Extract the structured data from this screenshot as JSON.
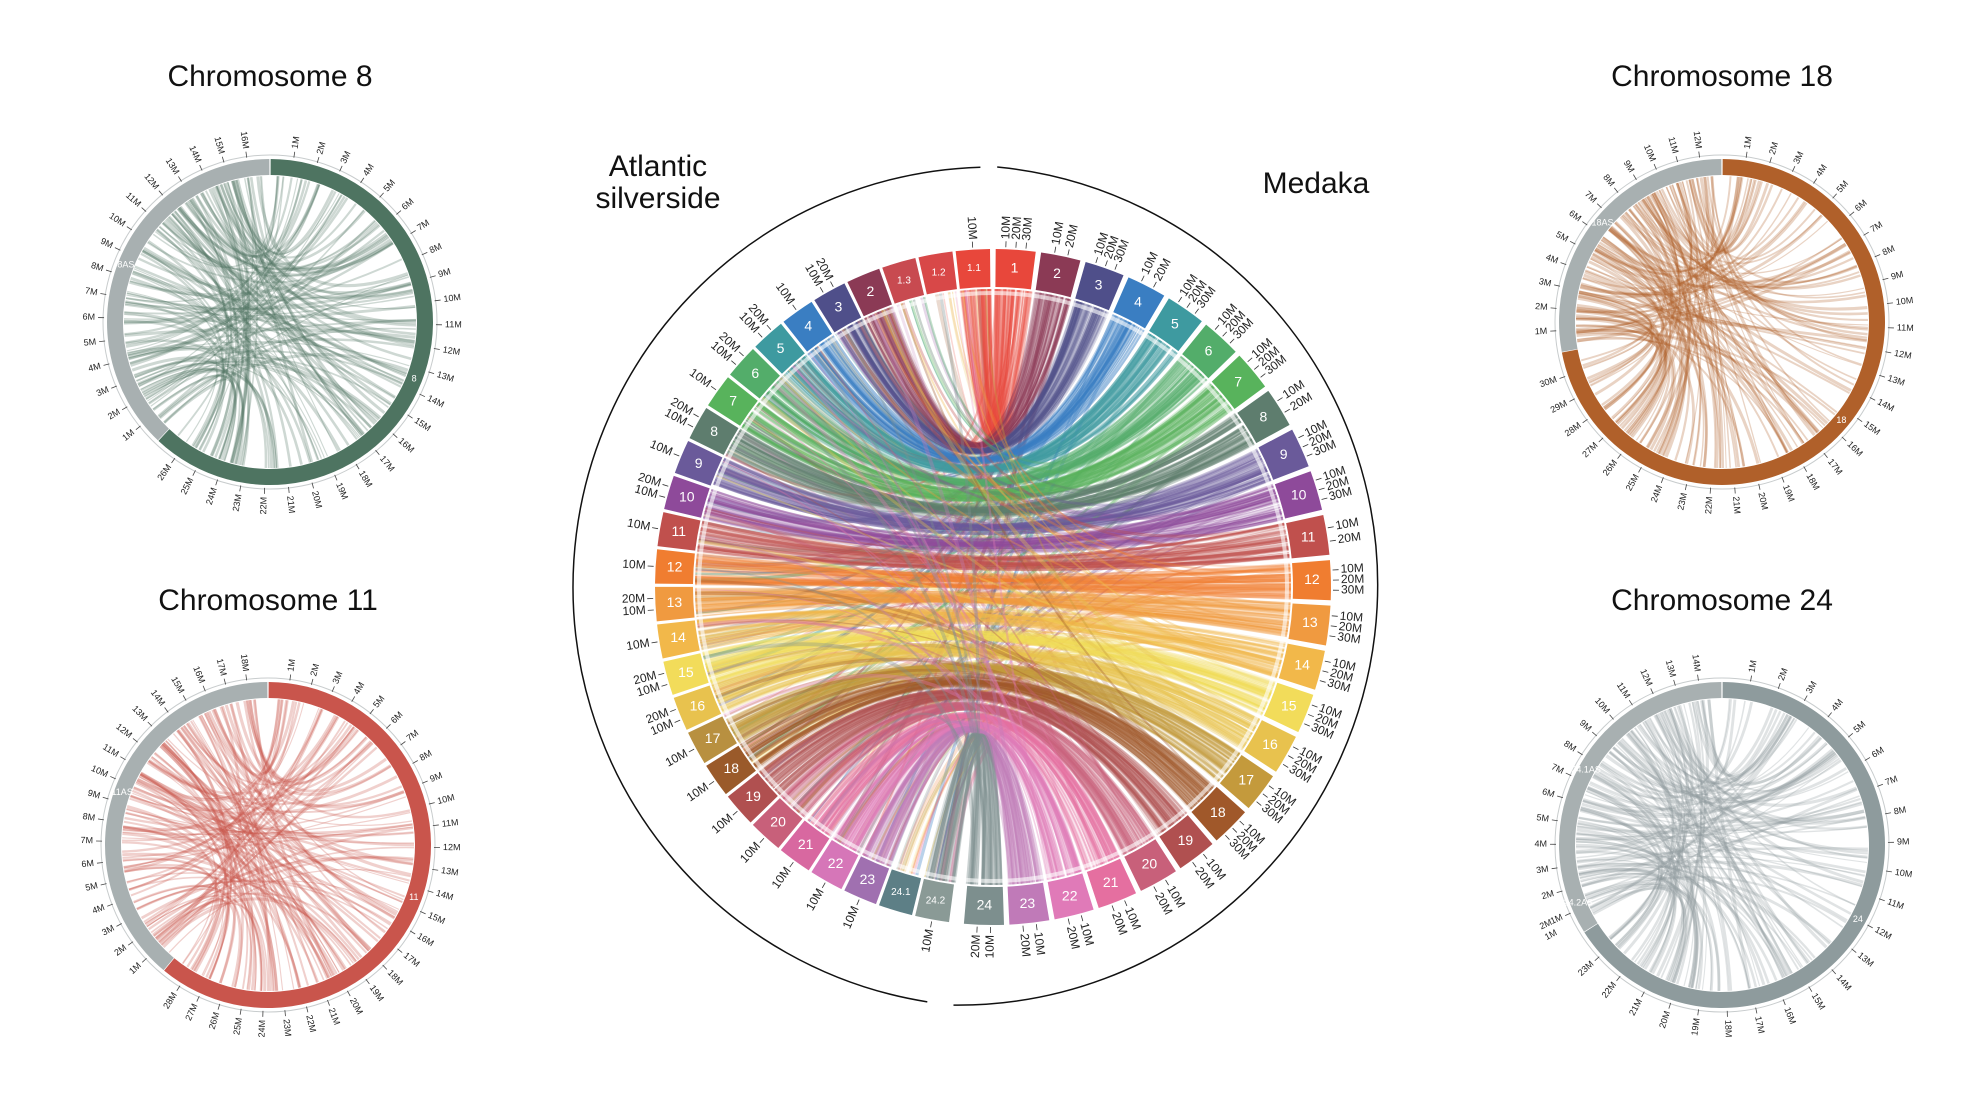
{
  "main": {
    "left_label_line1": "Atlantic",
    "left_label_line2": "silverside",
    "right_label": "Medaka",
    "medaka": [
      {
        "label": "1",
        "color": "#e8473b",
        "ticks": [
          "10M",
          "20M",
          "30M"
        ]
      },
      {
        "label": "2",
        "color": "#8b3a55",
        "ticks": [
          "10M",
          "20M"
        ]
      },
      {
        "label": "3",
        "color": "#4f4f8a",
        "ticks": [
          "10M",
          "20M",
          "30M"
        ]
      },
      {
        "label": "4",
        "color": "#3a7ec2",
        "ticks": [
          "10M",
          "20M"
        ]
      },
      {
        "label": "5",
        "color": "#3e9aa0",
        "ticks": [
          "10M",
          "20M",
          "30M"
        ]
      },
      {
        "label": "6",
        "color": "#53ad6a",
        "ticks": [
          "10M",
          "20M",
          "30M"
        ]
      },
      {
        "label": "7",
        "color": "#58b35c",
        "ticks": [
          "10M",
          "20M",
          "30M"
        ]
      },
      {
        "label": "8",
        "color": "#5e7d6e",
        "ticks": [
          "10M",
          "20M"
        ]
      },
      {
        "label": "9",
        "color": "#6a5a9a",
        "ticks": [
          "10M",
          "20M",
          "30M"
        ]
      },
      {
        "label": "10",
        "color": "#8e4a9a",
        "ticks": [
          "10M",
          "20M",
          "30M"
        ]
      },
      {
        "label": "11",
        "color": "#c0504d",
        "ticks": [
          "10M",
          "20M"
        ]
      },
      {
        "label": "12",
        "color": "#f07d30",
        "ticks": [
          "10M",
          "20M",
          "30M"
        ]
      },
      {
        "label": "13",
        "color": "#f09a40",
        "ticks": [
          "10M",
          "20M",
          "30M"
        ]
      },
      {
        "label": "14",
        "color": "#f2b84a",
        "ticks": [
          "10M",
          "20M",
          "30M"
        ]
      },
      {
        "label": "15",
        "color": "#f2dc5a",
        "ticks": [
          "10M",
          "20M",
          "30M"
        ]
      },
      {
        "label": "16",
        "color": "#e8c24e",
        "ticks": [
          "10M",
          "20M",
          "30M"
        ]
      },
      {
        "label": "17",
        "color": "#c49a3c",
        "ticks": [
          "10M",
          "20M",
          "30M"
        ]
      },
      {
        "label": "18",
        "color": "#a0582a",
        "ticks": [
          "10M",
          "20M",
          "30M"
        ]
      },
      {
        "label": "19",
        "color": "#b05050",
        "ticks": [
          "10M",
          "20M"
        ]
      },
      {
        "label": "20",
        "color": "#c8607a",
        "ticks": [
          "10M",
          "20M"
        ]
      },
      {
        "label": "21",
        "color": "#e56fa0",
        "ticks": [
          "10M",
          "20M"
        ]
      },
      {
        "label": "22",
        "color": "#e07ab8",
        "ticks": [
          "10M",
          "20M"
        ]
      },
      {
        "label": "23",
        "color": "#c07ab8",
        "ticks": [
          "10M",
          "20M"
        ]
      },
      {
        "label": "24",
        "color": "#7d8f8e",
        "ticks": [
          "10M",
          "20M"
        ]
      }
    ],
    "silverside": [
      {
        "label": "24.2",
        "color": "#8a9a96",
        "ticks": [
          "10M"
        ]
      },
      {
        "label": "24.1",
        "color": "#5d7f86",
        "ticks": []
      },
      {
        "label": "23",
        "color": "#a070b0",
        "ticks": [
          "10M"
        ]
      },
      {
        "label": "22",
        "color": "#d676b8",
        "ticks": [
          "10M"
        ]
      },
      {
        "label": "21",
        "color": "#d868a0",
        "ticks": [
          "10M"
        ]
      },
      {
        "label": "20",
        "color": "#c8607a",
        "ticks": [
          "10M"
        ]
      },
      {
        "label": "19",
        "color": "#b05050",
        "ticks": [
          "10M"
        ]
      },
      {
        "label": "18",
        "color": "#9a5a2a",
        "ticks": [
          "10M"
        ]
      },
      {
        "label": "17",
        "color": "#b89040",
        "ticks": [
          "10M"
        ]
      },
      {
        "label": "16",
        "color": "#e8c24e",
        "ticks": [
          "10M",
          "20M"
        ]
      },
      {
        "label": "15",
        "color": "#f2dc5a",
        "ticks": [
          "10M",
          "20M"
        ]
      },
      {
        "label": "14",
        "color": "#f2b84a",
        "ticks": [
          "10M"
        ]
      },
      {
        "label": "13",
        "color": "#f09a40",
        "ticks": [
          "10M",
          "20M"
        ]
      },
      {
        "label": "12",
        "color": "#f07d30",
        "ticks": [
          "10M"
        ]
      },
      {
        "label": "11",
        "color": "#c0504d",
        "ticks": [
          "10M"
        ]
      },
      {
        "label": "10",
        "color": "#8e4a9a",
        "ticks": [
          "10M",
          "20M"
        ]
      },
      {
        "label": "9",
        "color": "#6a5a9a",
        "ticks": [
          "10M"
        ]
      },
      {
        "label": "8",
        "color": "#5e7d6e",
        "ticks": [
          "10M",
          "20M"
        ]
      },
      {
        "label": "7",
        "color": "#58b35c",
        "ticks": [
          "10M"
        ]
      },
      {
        "label": "6",
        "color": "#53ad6a",
        "ticks": [
          "10M",
          "20M"
        ]
      },
      {
        "label": "5",
        "color": "#3e9aa0",
        "ticks": [
          "10M",
          "20M"
        ]
      },
      {
        "label": "4",
        "color": "#3a7ec2",
        "ticks": [
          "10M"
        ]
      },
      {
        "label": "3",
        "color": "#4f4f8a",
        "ticks": [
          "10M",
          "20M"
        ]
      },
      {
        "label": "2",
        "color": "#8b3a55",
        "ticks": []
      },
      {
        "label": "1.3",
        "color": "#c84a50",
        "ticks": []
      },
      {
        "label": "1.2",
        "color": "#d84848",
        "ticks": []
      },
      {
        "label": "1.1",
        "color": "#e8473b",
        "ticks": [
          "10M"
        ]
      }
    ]
  },
  "small": [
    {
      "title": "Chromosome 8",
      "color": "#4e7461",
      "grey_label": "8AS",
      "color_label": "8",
      "split": 0.62,
      "color_ticks": [
        "1M",
        "2M",
        "3M",
        "4M",
        "5M",
        "6M",
        "7M",
        "8M",
        "9M",
        "10M",
        "11M",
        "12M",
        "13M",
        "14M",
        "15M",
        "16M",
        "17M",
        "18M",
        "19M",
        "20M",
        "21M",
        "22M",
        "23M",
        "24M",
        "25M",
        "26M"
      ],
      "grey_ticks": [
        "1M",
        "2M",
        "3M",
        "4M",
        "5M",
        "6M",
        "7M",
        "8M",
        "9M",
        "10M",
        "11M",
        "12M",
        "13M",
        "14M",
        "15M",
        "16M"
      ]
    },
    {
      "title": "Chromosome 11",
      "color": "#c9554c",
      "grey_label": "11AS",
      "color_label": "11",
      "split": 0.61,
      "color_ticks": [
        "1M",
        "2M",
        "3M",
        "4M",
        "5M",
        "6M",
        "7M",
        "8M",
        "9M",
        "10M",
        "11M",
        "12M",
        "13M",
        "14M",
        "15M",
        "16M",
        "17M",
        "18M",
        "19M",
        "20M",
        "21M",
        "22M",
        "23M",
        "24M",
        "25M",
        "26M",
        "27M",
        "28M"
      ],
      "grey_ticks": [
        "1M",
        "2M",
        "3M",
        "4M",
        "5M",
        "6M",
        "7M",
        "8M",
        "9M",
        "10M",
        "11M",
        "12M",
        "13M",
        "14M",
        "15M",
        "16M",
        "17M",
        "18M"
      ]
    },
    {
      "title": "Chromosome 18",
      "color": "#b0602a",
      "grey_label": "18AS",
      "color_label": "18",
      "split": 0.72,
      "color_ticks": [
        "1M",
        "2M",
        "3M",
        "4M",
        "5M",
        "6M",
        "7M",
        "8M",
        "9M",
        "10M",
        "11M",
        "12M",
        "13M",
        "14M",
        "15M",
        "16M",
        "17M",
        "18M",
        "19M",
        "20M",
        "21M",
        "22M",
        "23M",
        "24M",
        "25M",
        "26M",
        "27M",
        "28M",
        "29M",
        "30M"
      ],
      "grey_ticks": [
        "1M",
        "2M",
        "3M",
        "4M",
        "5M",
        "6M",
        "7M",
        "8M",
        "9M",
        "10M",
        "11M",
        "12M"
      ]
    },
    {
      "title": "Chromosome 24",
      "color": "#8e9b9d",
      "grey_label": "24.1AS",
      "grey_label2": "24.2AS",
      "color_label": "24",
      "split": 0.66,
      "color_ticks": [
        "1M",
        "2M",
        "3M",
        "4M",
        "5M",
        "6M",
        "7M",
        "8M",
        "9M",
        "10M",
        "11M",
        "12M",
        "13M",
        "14M",
        "15M",
        "16M",
        "17M",
        "18M",
        "19M",
        "20M",
        "21M",
        "22M",
        "23M"
      ],
      "grey_ticks": [
        "1M",
        "2M",
        "3M",
        "4M",
        "5M",
        "6M",
        "7M",
        "8M",
        "9M",
        "10M",
        "11M",
        "12M",
        "13M",
        "14M"
      ],
      "grey_ticks2": [
        "1M",
        "2M"
      ]
    }
  ]
}
